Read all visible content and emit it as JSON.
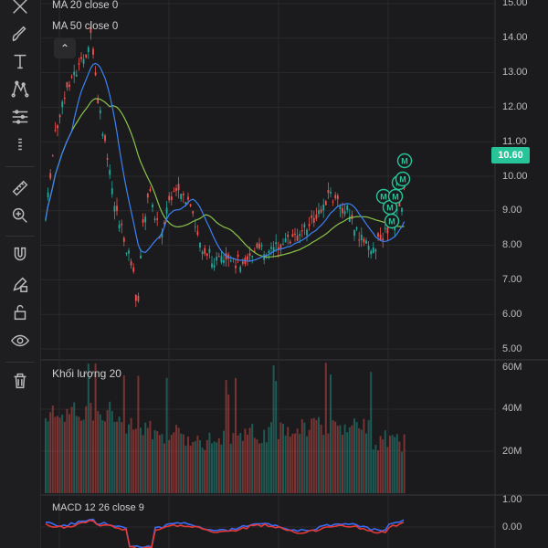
{
  "indicators": {
    "ma20_label": "MA 20 close 0",
    "ma50_label": "MA 50 close 0",
    "volume_label": "Khối lượng 20",
    "macd_label": "MACD 12 26 close 9"
  },
  "price_axis": {
    "ticks": [
      "15.00",
      "14.00",
      "13.00",
      "12.00",
      "11.00",
      "10.00",
      "9.00",
      "8.00",
      "7.00",
      "6.00",
      "5.00"
    ],
    "current_price": "10.60"
  },
  "volume_axis": {
    "ticks": [
      "60M",
      "40M",
      "20M"
    ]
  },
  "macd_axis": {
    "ticks": [
      "1.00",
      "0.00"
    ]
  },
  "markers": {
    "label": "M"
  },
  "toolbar": {
    "icons": [
      "crosshair-icon",
      "brush-icon",
      "text-icon",
      "pattern-icon",
      "measure-lines-icon",
      "fib-icon",
      "ruler-icon",
      "zoom-in-icon",
      "magnet-icon",
      "pencil-lock-icon",
      "lock-icon",
      "eye-icon",
      "trash-icon"
    ]
  },
  "colors": {
    "up": "#26a69a",
    "down": "#ef5350",
    "ma20": "#3b82f6",
    "ma50": "#8bc34a",
    "accent": "#27c49a",
    "macd": "#3b6cf5",
    "signal": "#e53935"
  }
}
